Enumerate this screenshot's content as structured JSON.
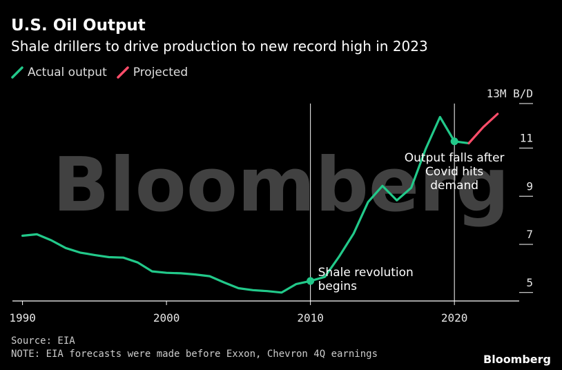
{
  "header": {
    "title": "U.S. Oil Output",
    "subtitle": "Shale drillers to drive production to new record high in 2023"
  },
  "legend": [
    {
      "label": "Actual output",
      "color": "#22c98a"
    },
    {
      "label": "Projected",
      "color": "#ff4d6a"
    }
  ],
  "footer": {
    "source": "Source: EIA",
    "note": "NOTE: EIA forecasts were made before Exxon, Chevron 4Q earnings",
    "brand": "Bloomberg"
  },
  "watermark": "Bloomberg",
  "chart_data": {
    "type": "line",
    "xlim": [
      1989.3,
      2024.5
    ],
    "ylim": [
      4.65,
      12.85
    ],
    "x_ticks": [
      1990,
      2000,
      2010,
      2020
    ],
    "x_tick_labels": [
      "1990",
      "2000",
      "2010",
      "2020"
    ],
    "y_ticks": [
      5,
      7,
      9,
      11,
      12.85
    ],
    "y_tick_labels": [
      "5",
      "7",
      "9",
      "11",
      "13M B/D"
    ],
    "series": [
      {
        "name": "Actual output",
        "color": "#22c98a",
        "x": [
          1990,
          1991,
          1992,
          1993,
          1994,
          1995,
          1996,
          1997,
          1998,
          1999,
          2000,
          2001,
          2002,
          2003,
          2004,
          2005,
          2006,
          2007,
          2008,
          2009,
          2010,
          2011,
          2012,
          2013,
          2014,
          2015,
          2016,
          2017,
          2018,
          2019,
          2020,
          2021
        ],
        "y": [
          7.36,
          7.42,
          7.17,
          6.85,
          6.66,
          6.56,
          6.47,
          6.45,
          6.25,
          5.88,
          5.82,
          5.8,
          5.75,
          5.68,
          5.42,
          5.18,
          5.1,
          5.06,
          5.0,
          5.35,
          5.48,
          5.65,
          6.5,
          7.45,
          8.76,
          9.43,
          8.83,
          9.35,
          10.96,
          12.29,
          11.28,
          11.2
        ]
      },
      {
        "name": "Projected",
        "color": "#ff4d6a",
        "x": [
          2021,
          2022,
          2023
        ],
        "y": [
          11.2,
          11.87,
          12.42
        ]
      }
    ],
    "markers": [
      {
        "x": 2010,
        "y": 5.48
      },
      {
        "x": 2020,
        "y": 11.28
      }
    ],
    "annotations": [
      {
        "x": 2010,
        "text_lines": [
          "Shale revolution",
          "begins"
        ]
      },
      {
        "x": 2020,
        "text_lines": [
          "Output falls after",
          "Covid hits",
          "demand"
        ]
      }
    ]
  }
}
